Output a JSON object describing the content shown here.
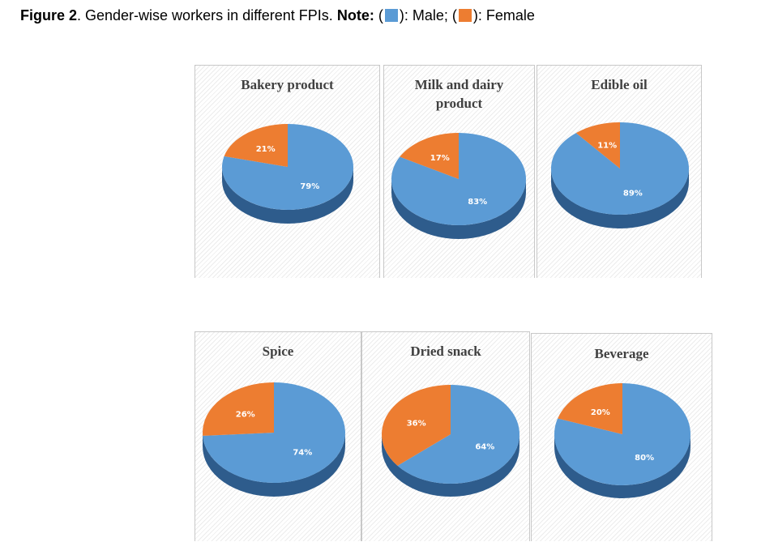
{
  "caption": {
    "figure_label": "Figure 2",
    "text": ". Gender-wise workers in different FPIs.",
    "note_label": "Note:",
    "male_text": "): Male; (",
    "female_text": "): Female",
    "open_paren": "("
  },
  "colors": {
    "male": "#5b9bd5",
    "male_side": "#2e5c8c",
    "female": "#ed7d31",
    "female_side": "#a54f12"
  },
  "chart_data": [
    {
      "type": "pie",
      "title": "Bakery product",
      "categories": [
        "Male",
        "Female"
      ],
      "values": [
        79,
        21
      ],
      "labels": [
        "79%",
        "21%"
      ]
    },
    {
      "type": "pie",
      "title": "Milk and dairy product",
      "categories": [
        "Male",
        "Female"
      ],
      "values": [
        83,
        17
      ],
      "labels": [
        "83%",
        "17%"
      ]
    },
    {
      "type": "pie",
      "title": "Edible  oil",
      "categories": [
        "Male",
        "Female"
      ],
      "values": [
        89,
        11
      ],
      "labels": [
        "89%",
        "11%"
      ]
    },
    {
      "type": "pie",
      "title": "Spice",
      "categories": [
        "Male",
        "Female"
      ],
      "values": [
        74,
        26
      ],
      "labels": [
        "74%",
        "26%"
      ]
    },
    {
      "type": "pie",
      "title": "Dried snack",
      "categories": [
        "Male",
        "Female"
      ],
      "values": [
        64,
        36
      ],
      "labels": [
        "64%",
        "36%"
      ]
    },
    {
      "type": "pie",
      "title": "Beverage",
      "categories": [
        "Male",
        "Female"
      ],
      "values": [
        80,
        20
      ],
      "labels": [
        "80%",
        "20%"
      ]
    }
  ]
}
